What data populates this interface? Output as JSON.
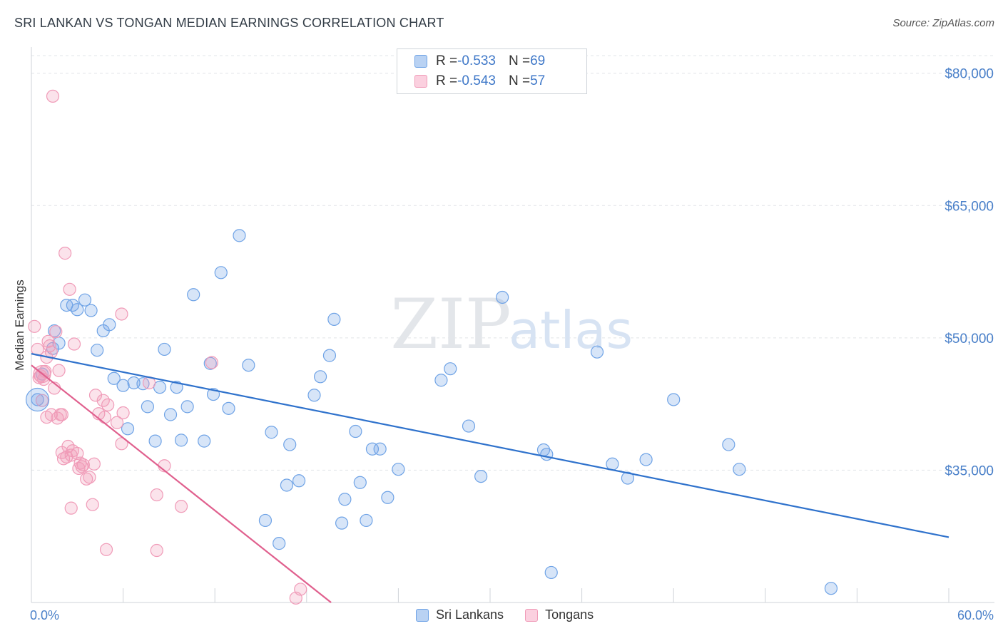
{
  "header": {
    "title": "SRI LANKAN VS TONGAN MEDIAN EARNINGS CORRELATION CHART",
    "source": "Source: ZipAtlas.com"
  },
  "watermark": {
    "zip": "ZIP",
    "atlas": "atlas"
  },
  "legend": {
    "rows": [
      {
        "r_label": "R = ",
        "r_value": "-0.533",
        "n_label": "N = ",
        "n_value": "69",
        "color": "#6fa3e6"
      },
      {
        "r_label": "R = ",
        "r_value": "-0.543",
        "n_label": "N = ",
        "n_value": "57",
        "color": "#f09bb8"
      }
    ]
  },
  "bottom_legend": {
    "items": [
      {
        "label": "Sri Lankans",
        "color": "#6fa3e6"
      },
      {
        "label": "Tongans",
        "color": "#f09bb8"
      }
    ]
  },
  "chart_data": {
    "type": "scatter",
    "title": "SRI LANKAN VS TONGAN MEDIAN EARNINGS CORRELATION CHART",
    "xlabel": "",
    "ylabel": "Median Earnings",
    "xlim": [
      0,
      60
    ],
    "ylim": [
      20000,
      82000
    ],
    "x_tick_labels": [
      "0.0%",
      "60.0%"
    ],
    "y_ticks": [
      35000,
      50000,
      65000,
      80000
    ],
    "y_tick_labels": [
      "$35,000",
      "$50,000",
      "$65,000",
      "$80,000"
    ],
    "grid": true,
    "legend_position": "top-center",
    "series": [
      {
        "name": "Sri Lankans",
        "color": "#6fa3e6",
        "line_color": "#2f72cc",
        "trend": {
          "x": [
            0,
            60
          ],
          "y": [
            48200,
            27400
          ]
        },
        "points": [
          [
            0.4,
            43000
          ],
          [
            0.7,
            45900
          ],
          [
            1.4,
            48800
          ],
          [
            1.5,
            50800
          ],
          [
            1.8,
            49400
          ],
          [
            2.3,
            53700
          ],
          [
            2.7,
            53700
          ],
          [
            3.0,
            53200
          ],
          [
            3.5,
            54300
          ],
          [
            3.9,
            53100
          ],
          [
            4.3,
            48600
          ],
          [
            4.7,
            50800
          ],
          [
            5.1,
            51500
          ],
          [
            5.4,
            45400
          ],
          [
            6.0,
            44600
          ],
          [
            6.3,
            39700
          ],
          [
            6.7,
            44900
          ],
          [
            7.3,
            44800
          ],
          [
            7.6,
            42200
          ],
          [
            8.1,
            38300
          ],
          [
            8.4,
            44400
          ],
          [
            8.7,
            48700
          ],
          [
            9.1,
            41300
          ],
          [
            9.5,
            44400
          ],
          [
            9.8,
            38400
          ],
          [
            10.2,
            42200
          ],
          [
            10.6,
            54900
          ],
          [
            11.3,
            38300
          ],
          [
            11.7,
            47100
          ],
          [
            11.9,
            43600
          ],
          [
            12.4,
            57400
          ],
          [
            12.9,
            42000
          ],
          [
            13.6,
            61600
          ],
          [
            14.2,
            46900
          ],
          [
            15.3,
            29300
          ],
          [
            15.7,
            39300
          ],
          [
            16.2,
            26700
          ],
          [
            16.7,
            33300
          ],
          [
            16.9,
            37900
          ],
          [
            17.5,
            33800
          ],
          [
            18.5,
            43500
          ],
          [
            18.9,
            45600
          ],
          [
            19.5,
            48000
          ],
          [
            19.8,
            52100
          ],
          [
            20.3,
            29000
          ],
          [
            20.5,
            31700
          ],
          [
            21.2,
            39400
          ],
          [
            21.5,
            33600
          ],
          [
            21.9,
            29300
          ],
          [
            22.3,
            37400
          ],
          [
            22.8,
            37400
          ],
          [
            23.3,
            31900
          ],
          [
            24.0,
            35100
          ],
          [
            26.8,
            45200
          ],
          [
            27.4,
            46500
          ],
          [
            28.6,
            40000
          ],
          [
            29.4,
            34300
          ],
          [
            30.8,
            54600
          ],
          [
            33.5,
            37300
          ],
          [
            33.7,
            36800
          ],
          [
            34.0,
            23400
          ],
          [
            37.0,
            48400
          ],
          [
            38.0,
            35700
          ],
          [
            39.0,
            34100
          ],
          [
            40.2,
            36200
          ],
          [
            42.0,
            43000
          ],
          [
            45.6,
            37900
          ],
          [
            46.3,
            35100
          ],
          [
            52.3,
            21600
          ]
        ]
      },
      {
        "name": "Tongans",
        "color": "#f09bb8",
        "line_color": "#e0608e",
        "trend": {
          "x": [
            0,
            19.6
          ],
          "y": [
            46900,
            20000
          ]
        },
        "points": [
          [
            0.2,
            51300
          ],
          [
            0.4,
            48700
          ],
          [
            0.5,
            45500
          ],
          [
            0.7,
            42900
          ],
          [
            0.9,
            46200
          ],
          [
            1.0,
            41000
          ],
          [
            1.1,
            49600
          ],
          [
            1.2,
            49100
          ],
          [
            1.3,
            41300
          ],
          [
            1.4,
            77400
          ],
          [
            1.5,
            44300
          ],
          [
            1.6,
            50700
          ],
          [
            1.7,
            40900
          ],
          [
            1.8,
            46300
          ],
          [
            1.9,
            41300
          ],
          [
            2.0,
            41300
          ],
          [
            2.0,
            37000
          ],
          [
            2.1,
            36300
          ],
          [
            2.2,
            59600
          ],
          [
            2.3,
            36500
          ],
          [
            2.4,
            37700
          ],
          [
            2.5,
            55500
          ],
          [
            2.6,
            30700
          ],
          [
            2.7,
            37200
          ],
          [
            2.8,
            49300
          ],
          [
            3.0,
            36900
          ],
          [
            3.1,
            35200
          ],
          [
            3.2,
            35800
          ],
          [
            3.4,
            35600
          ],
          [
            3.6,
            34000
          ],
          [
            3.8,
            34200
          ],
          [
            4.0,
            31100
          ],
          [
            4.1,
            35700
          ],
          [
            4.2,
            43500
          ],
          [
            4.4,
            41400
          ],
          [
            4.7,
            42900
          ],
          [
            4.8,
            41000
          ],
          [
            4.9,
            26000
          ],
          [
            5.0,
            42400
          ],
          [
            5.6,
            40400
          ],
          [
            5.9,
            52700
          ],
          [
            5.9,
            38000
          ],
          [
            6.0,
            41500
          ],
          [
            7.7,
            44900
          ],
          [
            8.2,
            32200
          ],
          [
            8.2,
            25900
          ],
          [
            8.7,
            35500
          ],
          [
            9.8,
            30900
          ],
          [
            11.8,
            47200
          ],
          [
            17.3,
            20500
          ],
          [
            17.6,
            21500
          ],
          [
            0.6,
            45700
          ],
          [
            0.8,
            45300
          ],
          [
            1.0,
            47800
          ],
          [
            1.3,
            48400
          ],
          [
            2.6,
            36700
          ],
          [
            3.3,
            35400
          ]
        ]
      }
    ]
  }
}
